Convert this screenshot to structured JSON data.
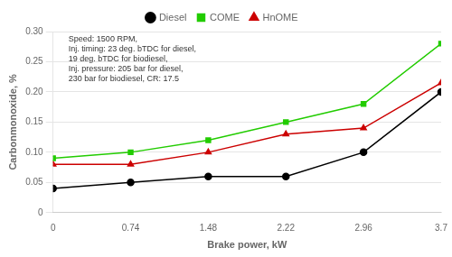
{
  "chart_data": {
    "type": "line",
    "x": [
      0,
      0.74,
      1.48,
      2.22,
      2.96,
      3.7
    ],
    "series": [
      {
        "name": "Diesel",
        "color": "#000000",
        "marker": "circle",
        "values": [
          0.04,
          0.05,
          0.06,
          0.06,
          0.1,
          0.2
        ]
      },
      {
        "name": "COME",
        "color": "#22cc00",
        "marker": "square",
        "values": [
          0.09,
          0.1,
          0.12,
          0.15,
          0.18,
          0.28
        ]
      },
      {
        "name": "HnOME",
        "color": "#cc0000",
        "marker": "triangle",
        "values": [
          0.08,
          0.08,
          0.1,
          0.13,
          0.14,
          0.215
        ]
      }
    ],
    "xlabel": "Brake power, kW",
    "ylabel": "Carbonmonoxide, %",
    "xlim": [
      0,
      3.7
    ],
    "ylim": [
      0,
      0.3
    ],
    "xticks": [
      0,
      0.74,
      1.48,
      2.22,
      2.96,
      3.7
    ],
    "yticks": [
      0,
      0.05,
      {
        "value": 0.1,
        "label": "0.10"
      },
      0.15,
      {
        "value": 0.2,
        "label": "0.20"
      },
      0.25,
      {
        "value": 0.3,
        "label": "0.30"
      }
    ],
    "annotation": "Speed: 1500 RPM,\nInj. timing: 23 deg. bTDC for diesel,\n19 deg. bTDC for biodiesel,\nInj. pressure: 205 bar for diesel,\n230 bar for biodiesel, CR: 17.5",
    "grid": "y",
    "legend": "top"
  }
}
